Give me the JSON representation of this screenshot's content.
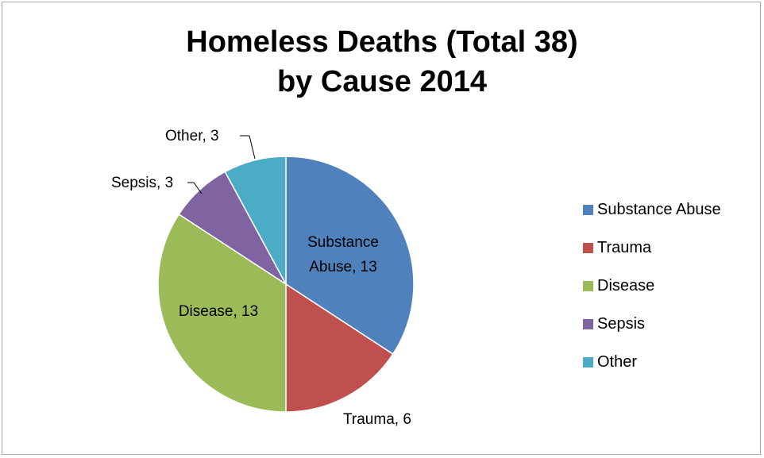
{
  "chart_data": {
    "type": "pie",
    "title_lines": [
      "Homeless Deaths (Total 38)",
      "by Cause 2014"
    ],
    "slices": [
      {
        "name": "Substance Abuse",
        "value": 13,
        "color": "#4f81bd",
        "label_lines": [
          "Substance",
          "Abuse, 13"
        ]
      },
      {
        "name": "Trauma",
        "value": 6,
        "color": "#c0504d",
        "label_lines": [
          "Trauma, 6"
        ]
      },
      {
        "name": "Disease",
        "value": 13,
        "color": "#9bbb59",
        "label_lines": [
          "Disease, 13"
        ]
      },
      {
        "name": "Sepsis",
        "value": 3,
        "color": "#8064a2",
        "label_lines": [
          "Sepsis, 3"
        ]
      },
      {
        "name": "Other",
        "value": 3,
        "color": "#4bacc6",
        "label_lines": [
          "Other, 3"
        ]
      }
    ],
    "legend_position": "right"
  }
}
